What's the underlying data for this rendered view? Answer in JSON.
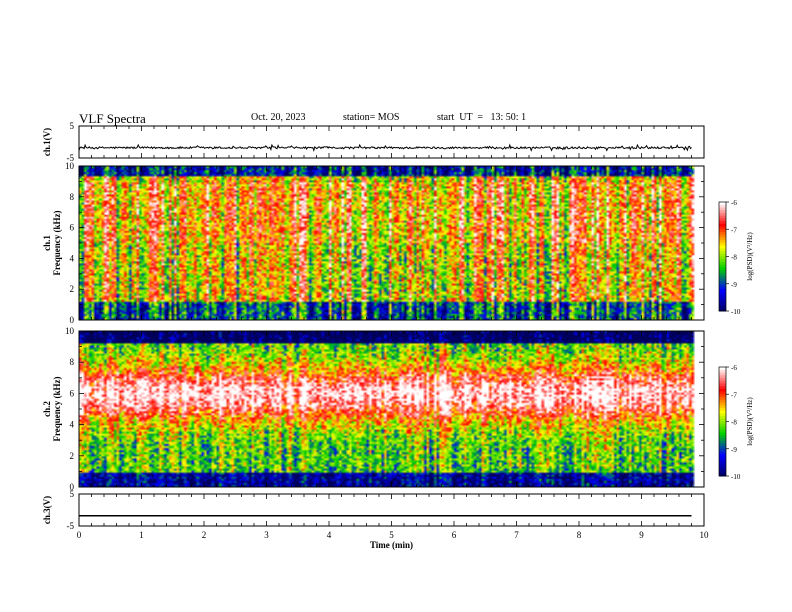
{
  "header": {
    "title": "VLF Spectra",
    "date": "Oct. 20, 2023",
    "station": "station= MOS",
    "start": "start  UT  =   13: 50: 1"
  },
  "chart_data": [
    {
      "type": "line",
      "panel": "ch1-waveform",
      "ylabel": "ch.1(V)",
      "ylim": [
        -5,
        5
      ],
      "yticks": [
        "5",
        "-5"
      ],
      "x": [
        0,
        1,
        2,
        3,
        4,
        5,
        6,
        7,
        8,
        9,
        9.8
      ],
      "values": [
        -1.8,
        -1.8,
        -1.8,
        -1.8,
        -1.8,
        -1.8,
        -1.8,
        -1.8,
        -1.8,
        -1.8,
        -1.8
      ]
    },
    {
      "type": "heatmap",
      "panel": "ch1-spectrogram",
      "ylabel": "ch.1\nFrequency (kHz)",
      "ylabel_line1": "ch.1",
      "ylabel_line2": "Frequency (kHz)",
      "ylim": [
        0,
        10
      ],
      "yticks": [
        "0",
        "2",
        "4",
        "6",
        "8",
        "10"
      ],
      "x_range_min": [
        0,
        9.8
      ],
      "colorbar": {
        "label": "log(PSD)(V²/Hz)",
        "range": [
          -10,
          -6
        ],
        "ticks": [
          "-6",
          "-7",
          "-8",
          "-9",
          "-10"
        ]
      }
    },
    {
      "type": "heatmap",
      "panel": "ch2-spectrogram",
      "ylabel": "ch.2\nFrequency (kHz)",
      "ylabel_line1": "ch.2",
      "ylabel_line2": "Frequency (kHz)",
      "ylim": [
        0,
        10
      ],
      "yticks": [
        "0",
        "2",
        "4",
        "6",
        "8",
        "10"
      ],
      "x_range_min": [
        0,
        9.8
      ],
      "colorbar": {
        "label": "log(PSD)(V²/Hz)",
        "range": [
          -10,
          -6
        ],
        "ticks": [
          "-6",
          "-7",
          "-8",
          "-9",
          "-10"
        ]
      }
    },
    {
      "type": "line",
      "panel": "ch3-waveform",
      "ylabel": "ch.3(V)",
      "ylim": [
        -5,
        5
      ],
      "yticks": [
        "5",
        "-5"
      ],
      "x": [
        0,
        9.8
      ],
      "values": [
        -1.8,
        -1.8
      ]
    }
  ],
  "xaxis": {
    "label": "Time  (min)",
    "range": [
      0,
      10
    ],
    "ticks": [
      "0",
      "1",
      "2",
      "3",
      "4",
      "5",
      "6",
      "7",
      "8",
      "9",
      "10"
    ]
  },
  "colors": {
    "colormap": [
      "#00005a",
      "#0000ff",
      "#00d000",
      "#ffff00",
      "#ff0000",
      "#ffffff"
    ]
  }
}
